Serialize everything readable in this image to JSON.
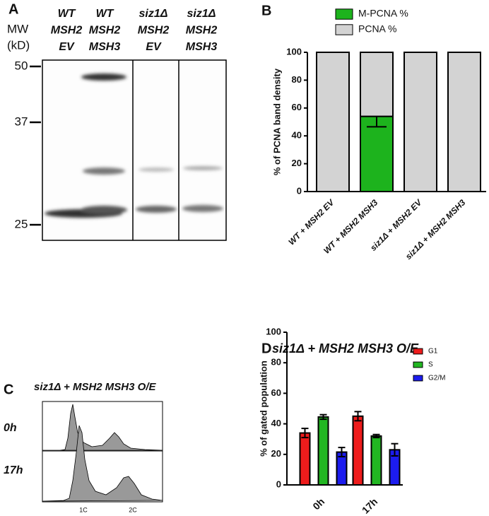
{
  "panel_labels": [
    "A",
    "B",
    "C",
    "D"
  ],
  "blot": {
    "mw_label": [
      "MW",
      "(kD)"
    ],
    "markers": [
      50,
      37,
      25
    ],
    "lanes": [
      [
        "WT",
        "MSH2",
        "EV"
      ],
      [
        "WT",
        "MSH2",
        "MSH3"
      ],
      [
        "siz1Δ",
        "MSH2",
        "EV"
      ],
      [
        "siz1Δ",
        "MSH2",
        "MSH3"
      ]
    ]
  },
  "histogram": {
    "title": "siz1Δ + MSH2 MSH3 O/E",
    "rows": [
      "0h",
      "17h"
    ],
    "x_labels": [
      "1C",
      "2C"
    ]
  },
  "chart_data": [
    {
      "type": "bar",
      "stacked": true,
      "ylabel": "% of PCNA band density",
      "categories": [
        "WT + MSH2 EV",
        "WT + MSH2 MSH3",
        "siz1Δ + MSH2 EV",
        "siz1Δ + MSH2 MSH3"
      ],
      "series": [
        {
          "name": "M-PCNA %",
          "color": "#1db31d",
          "values": [
            0,
            54,
            0,
            0
          ],
          "errors": [
            null,
            7.5,
            null,
            null
          ]
        },
        {
          "name": "PCNA %",
          "color": "#d3d3d3",
          "values": [
            100,
            46,
            100,
            100
          ]
        }
      ],
      "ylim": [
        0,
        100
      ],
      "yticks": [
        0,
        20,
        40,
        60,
        80,
        100
      ],
      "legend": "top"
    },
    {
      "type": "bar",
      "title": "siz1Δ + MSH2 MSH3 O/E",
      "ylabel": "% of gated population",
      "categories": [
        "0h",
        "17h"
      ],
      "series": [
        {
          "name": "G1",
          "color": "#ee1c1c",
          "values": [
            34,
            45
          ],
          "errors": [
            3,
            3
          ]
        },
        {
          "name": "S",
          "color": "#22b722",
          "values": [
            44.5,
            32
          ],
          "errors": [
            1.5,
            1
          ]
        },
        {
          "name": "G2/M",
          "color": "#1c1cee",
          "values": [
            21.5,
            23
          ],
          "errors": [
            3,
            4
          ]
        }
      ],
      "ylim": [
        0,
        100
      ],
      "yticks": [
        0,
        20,
        40,
        60,
        80,
        100
      ],
      "legend": "top-right"
    }
  ]
}
